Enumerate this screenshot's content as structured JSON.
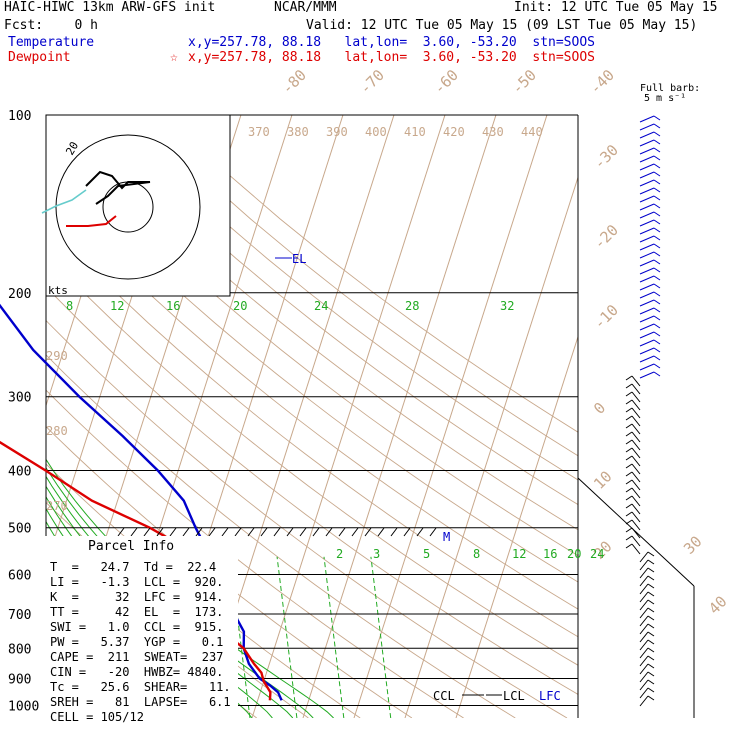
{
  "header": {
    "model": "HAIC-HIWC 13km ARW-GFS init",
    "org": "NCAR/MMM",
    "init": "Init: 12 UTC Tue 05 May 15",
    "fcst": "Fcst:    0 h",
    "valid": "Valid: 12 UTC Tue 05 May 15 (09 LST Tue 05 May 15)"
  },
  "legend": [
    {
      "label": "Temperature",
      "marker": "",
      "info": "x,y=257.78, 88.18   lat,lon=  3.60, -53.20  stn=SOOS",
      "color": "#0000cc"
    },
    {
      "label": "Dewpoint",
      "marker": "☆",
      "info": "x,y=257.78, 88.18   lat,lon=  3.60, -53.20  stn=SOOS",
      "color": "#dd0000"
    }
  ],
  "barb_note": {
    "line1": "Full barb:",
    "line2": "5 m s⁻¹"
  },
  "chart_data": {
    "type": "skew-t",
    "pressure_levels": [
      100,
      200,
      300,
      400,
      500,
      600,
      700,
      800,
      900,
      1000
    ],
    "temperature_labels": [
      "-80",
      "-70",
      "-60",
      "-50",
      "-40",
      "-30",
      "-20",
      "-10",
      "0",
      "10",
      "20",
      "30",
      "40"
    ],
    "theta_labels": [
      "370",
      "380",
      "390",
      "400",
      "410",
      "420",
      "430",
      "440"
    ],
    "theta_left_labels": [
      "290",
      "280",
      "270"
    ],
    "theta_e_labels": [
      "8",
      "12",
      "16",
      "20",
      "24",
      "28",
      "32"
    ],
    "mixing_ratio_labels": [
      "2",
      "3",
      "5",
      "8",
      "12",
      "16",
      "20",
      "24"
    ],
    "hodograph_units": "kts",
    "hodograph_ring_label": "20",
    "annotations": [
      "EL",
      "M",
      "CCL",
      "LCL",
      "LFC"
    ],
    "series": [
      {
        "name": "Temperature",
        "color": "#0000cc",
        "points": [
          [
            100,
            -81
          ],
          [
            120,
            -74
          ],
          [
            150,
            -70
          ],
          [
            180,
            -64
          ],
          [
            200,
            -58
          ],
          [
            250,
            -46
          ],
          [
            300,
            -34
          ],
          [
            350,
            -23
          ],
          [
            400,
            -14
          ],
          [
            450,
            -7
          ],
          [
            500,
            -3
          ],
          [
            550,
            1
          ],
          [
            600,
            5
          ],
          [
            650,
            9
          ],
          [
            700,
            10
          ],
          [
            750,
            13
          ],
          [
            800,
            14
          ],
          [
            850,
            16
          ],
          [
            900,
            19
          ],
          [
            925,
            21.5
          ],
          [
            950,
            23.5
          ],
          [
            980,
            24.7
          ]
        ]
      },
      {
        "name": "Dewpoint",
        "color": "#dd0000",
        "points": [
          [
            100,
            -92
          ],
          [
            130,
            -91
          ],
          [
            160,
            -88
          ],
          [
            200,
            -80
          ],
          [
            250,
            -71
          ],
          [
            300,
            -60
          ],
          [
            350,
            -49
          ],
          [
            400,
            -36
          ],
          [
            450,
            -25
          ],
          [
            500,
            -12
          ],
          [
            550,
            -2
          ],
          [
            600,
            3
          ],
          [
            650,
            2
          ],
          [
            700,
            6
          ],
          [
            750,
            9
          ],
          [
            800,
            14
          ],
          [
            850,
            17
          ],
          [
            880,
            19
          ],
          [
            910,
            20
          ],
          [
            950,
            22
          ],
          [
            980,
            22.4
          ]
        ]
      }
    ]
  },
  "parcel_info": {
    "title": "Parcel Info",
    "rows": [
      "T  =   24.7  Td =  22.4",
      "LI =   -1.3  LCL =  920.",
      "K  =     32  LFC =  914.",
      "TT =     42  EL  =  173.",
      "SWI =   1.0  CCL =  915.",
      "PW =   5.37  YGP =   0.1",
      "CAPE =  211  SWEAT=  237",
      "CIN =   -20  HWBZ= 4840.",
      "Tc =   25.6  SHEAR=   11.",
      "SREH =   81  LAPSE=   6.1",
      "CELL = 105/12"
    ]
  }
}
